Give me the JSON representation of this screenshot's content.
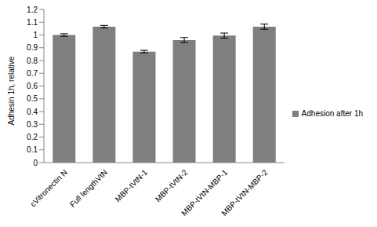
{
  "chart_data": {
    "type": "bar",
    "y_label": "Adhesin 1h, relative",
    "categories": [
      "cVitronectin N",
      "Full lengthVtN",
      "MBP-tVtN-1",
      "MBP-tVtN-2",
      "MBP-tVtN-MBP-1",
      "MBP-tVtN-MBP-2"
    ],
    "series": [
      {
        "name": "Adhesion after 1h",
        "color": "#7f7f7f",
        "values": [
          1.0,
          1.065,
          0.87,
          0.96,
          0.995,
          1.065
        ],
        "errors": [
          0.01,
          0.01,
          0.01,
          0.02,
          0.02,
          0.02
        ]
      }
    ],
    "ylim": [
      0,
      1.2
    ],
    "yticks": [
      0,
      0.1,
      0.2,
      0.3,
      0.4,
      0.5,
      0.6,
      0.7,
      0.8,
      0.9,
      1,
      1.1,
      1.2
    ],
    "grid": false,
    "legend": "right"
  }
}
